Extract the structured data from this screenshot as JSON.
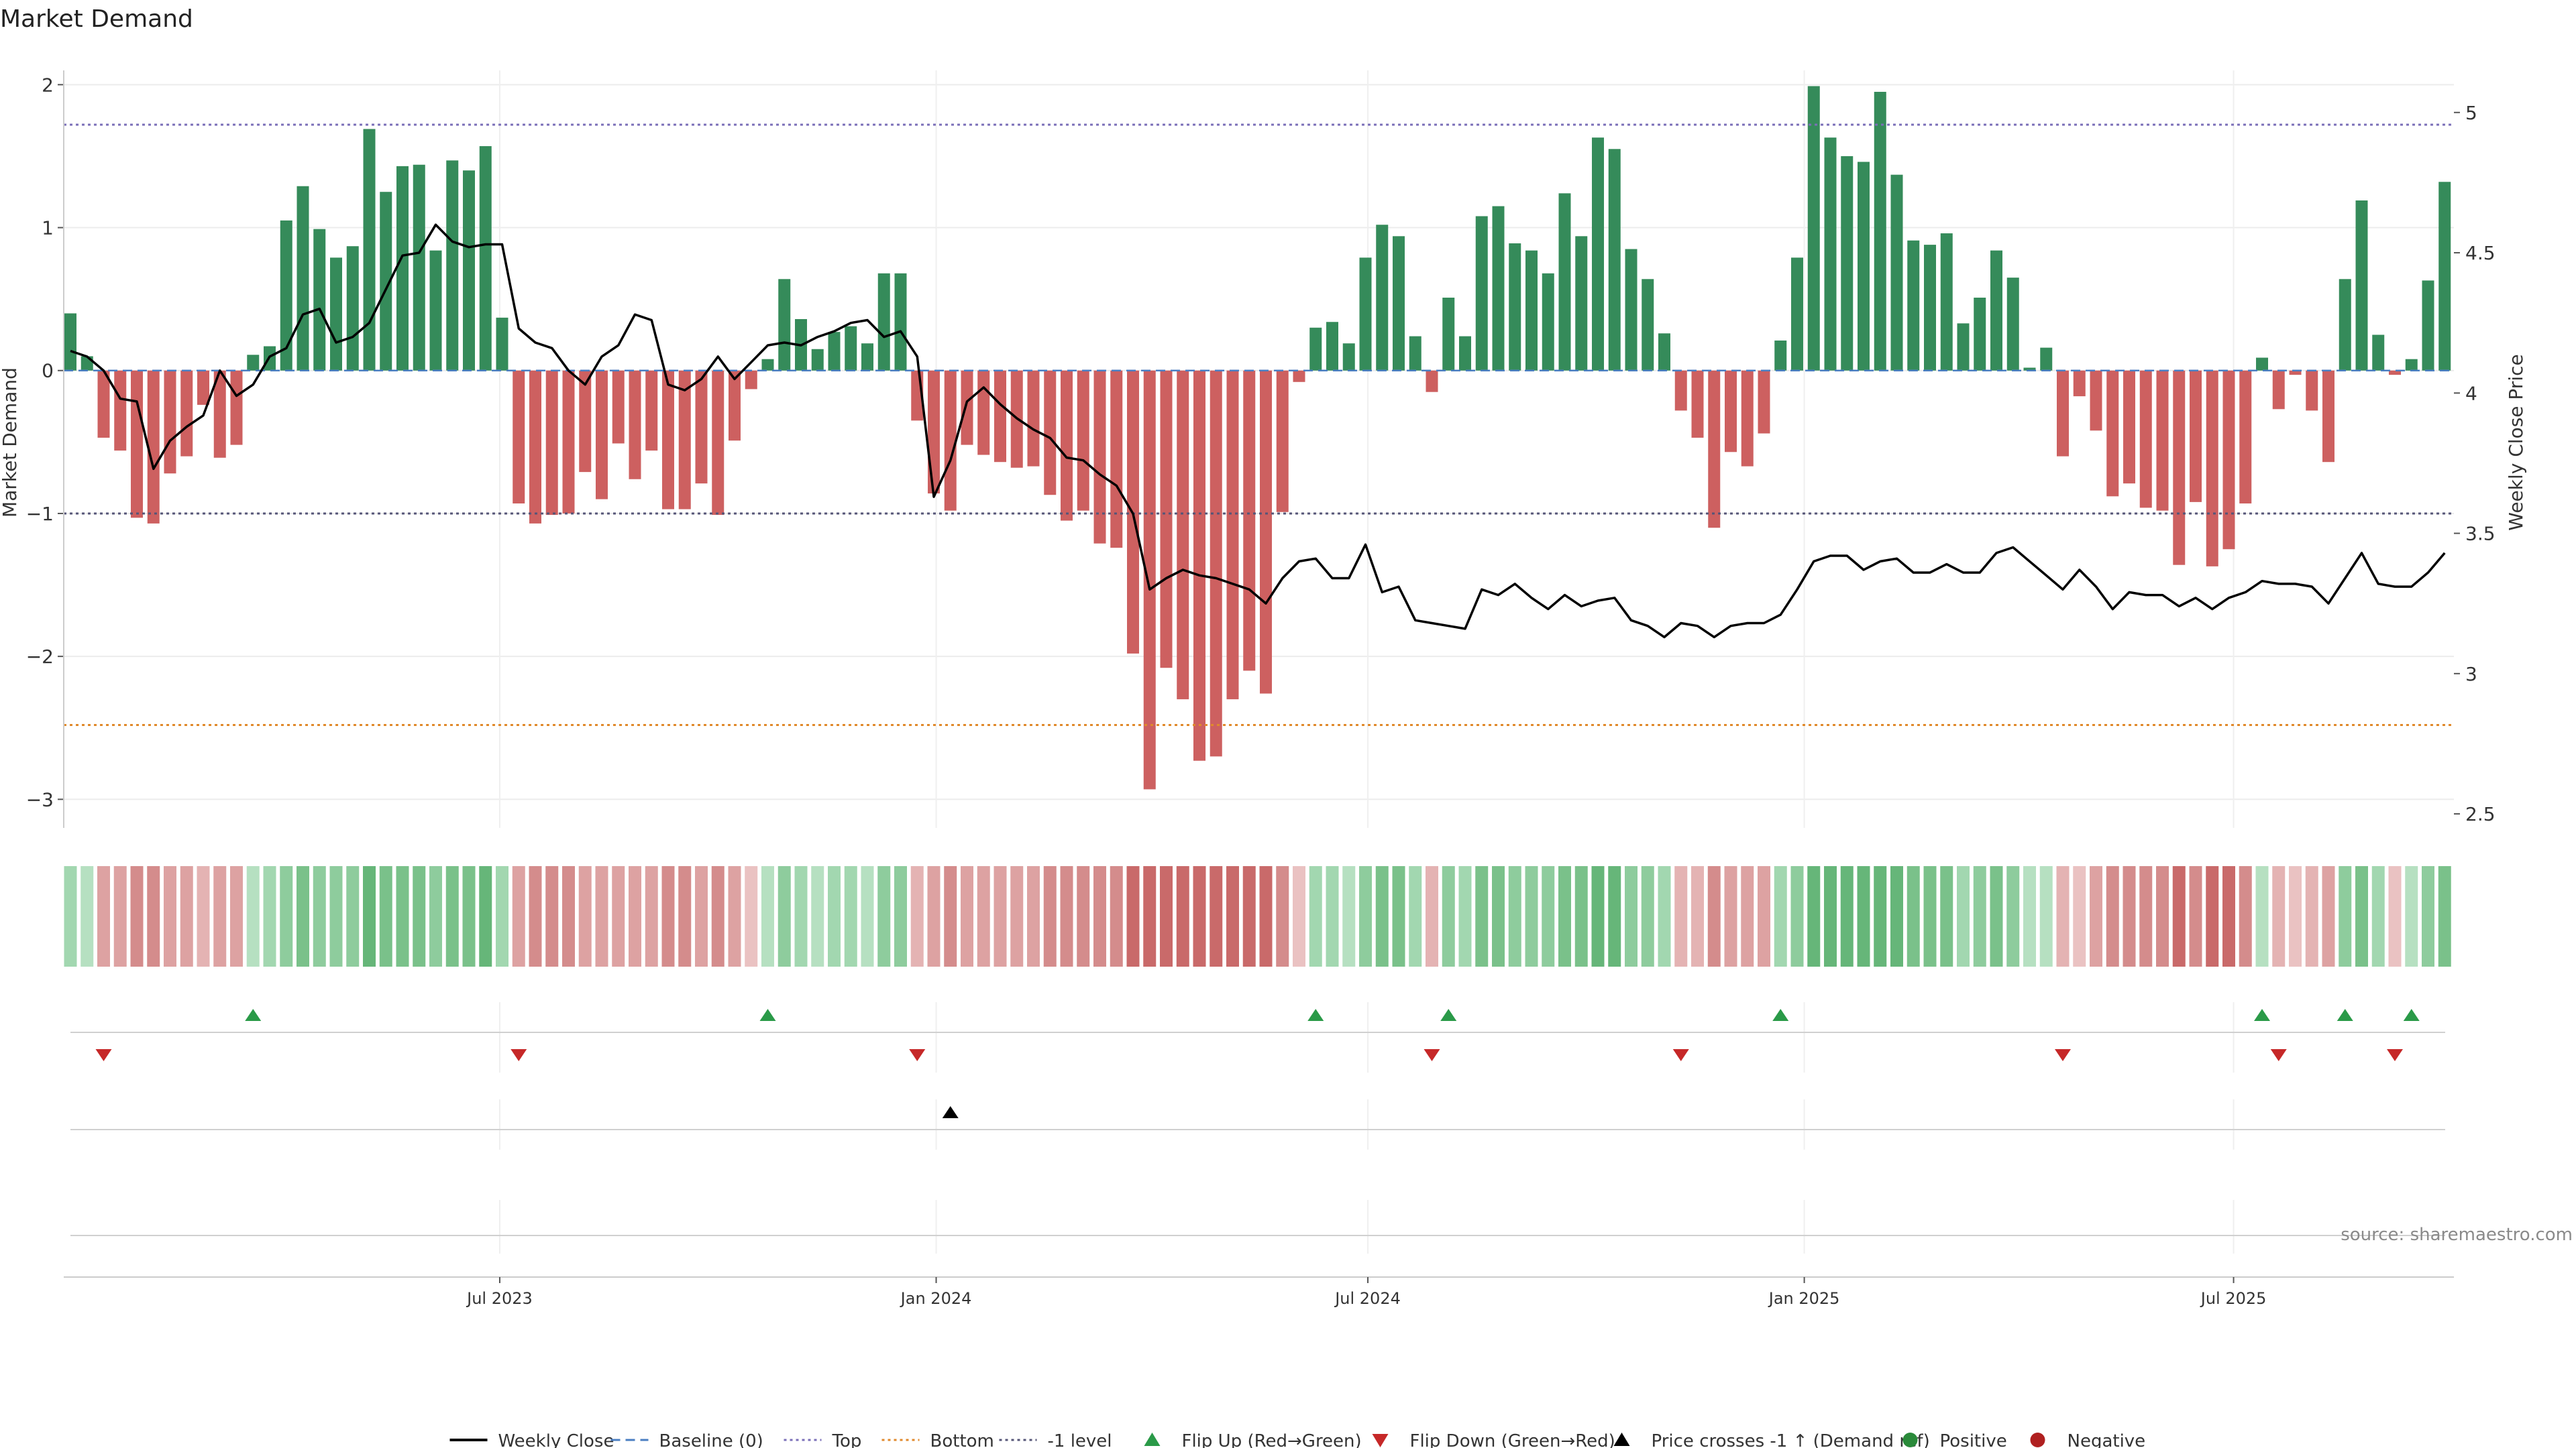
{
  "chart_data": {
    "type": "bar",
    "title": "Market Demand",
    "ylabel": "Market Demand",
    "y2label": "Weekly Close Price",
    "ylim": [
      -3.2,
      2.1
    ],
    "y2lim": [
      2.45,
      5.15
    ],
    "yticks": [
      {
        "value": 2,
        "label": "2"
      },
      {
        "value": 1,
        "label": "1"
      },
      {
        "value": 0,
        "label": "0"
      },
      {
        "value": -1,
        "label": "−1"
      },
      {
        "value": -2,
        "label": "−2"
      },
      {
        "value": -3,
        "label": "−3"
      }
    ],
    "y2ticks": [
      {
        "value": 5,
        "label": "5"
      },
      {
        "value": 4.5,
        "label": "4.5"
      },
      {
        "value": 4,
        "label": "4"
      },
      {
        "value": 3.5,
        "label": "3.5"
      },
      {
        "value": 3,
        "label": "3"
      },
      {
        "value": 2.5,
        "label": "2.5"
      }
    ],
    "x_start": "2023-01-01",
    "x_step_days": 7,
    "xticks": [
      {
        "date": "2023-07-01",
        "label": "Jul 2023"
      },
      {
        "date": "2024-01-01",
        "label": "Jan 2024"
      },
      {
        "date": "2024-07-01",
        "label": "Jul 2024"
      },
      {
        "date": "2025-01-01",
        "label": "Jan 2025"
      },
      {
        "date": "2025-07-01",
        "label": "Jul 2025"
      }
    ],
    "reference_lines": {
      "top": 1.72,
      "bottom": -2.48,
      "minus_one": -1
    },
    "demand": [
      0.4,
      0.1,
      -0.47,
      -0.56,
      -1.03,
      -1.07,
      -0.72,
      -0.6,
      -0.24,
      -0.61,
      -0.52,
      0.11,
      0.17,
      1.05,
      1.29,
      0.99,
      0.79,
      0.87,
      1.69,
      1.25,
      1.43,
      1.44,
      0.84,
      1.47,
      1.4,
      1.57,
      0.37,
      -0.93,
      -1.07,
      -1.01,
      -1.0,
      -0.71,
      -0.9,
      -0.51,
      -0.76,
      -0.56,
      -0.97,
      -0.97,
      -0.79,
      -1.01,
      -0.49,
      -0.13,
      0.08,
      0.64,
      0.36,
      0.15,
      0.27,
      0.31,
      0.19,
      0.68,
      0.68,
      -0.35,
      -0.86,
      -0.98,
      -0.52,
      -0.59,
      -0.64,
      -0.68,
      -0.67,
      -0.87,
      -1.05,
      -0.98,
      -1.21,
      -1.24,
      -1.98,
      -2.93,
      -2.08,
      -2.3,
      -2.73,
      -2.7,
      -2.3,
      -2.1,
      -2.26,
      -0.99,
      -0.08,
      0.3,
      0.34,
      0.19,
      0.79,
      1.02,
      0.94,
      0.24,
      -0.15,
      0.51,
      0.24,
      1.08,
      1.15,
      0.89,
      0.84,
      0.68,
      1.24,
      0.94,
      1.63,
      1.55,
      0.85,
      0.64,
      0.26,
      -0.28,
      -0.47,
      -1.1,
      -0.57,
      -0.67,
      -0.44,
      0.21,
      0.79,
      1.99,
      1.63,
      1.5,
      1.46,
      1.95,
      1.37,
      0.91,
      0.88,
      0.96,
      0.33,
      0.51,
      0.84,
      0.65,
      0.02,
      0.16,
      -0.6,
      -0.18,
      -0.42,
      -0.88,
      -0.79,
      -0.96,
      -0.98,
      -1.36,
      -0.92,
      -1.37,
      -1.25,
      -0.93,
      0.09,
      -0.27,
      -0.03,
      -0.28,
      -0.64,
      0.64,
      1.19,
      0.25,
      -0.03,
      0.08,
      0.63,
      1.32
    ],
    "heat": [
      3,
      2,
      4,
      4,
      5,
      5,
      4,
      4,
      3,
      4,
      4,
      2,
      3,
      4,
      5,
      4,
      4,
      4,
      6,
      5,
      5,
      5,
      4,
      5,
      5,
      6,
      3,
      4,
      5,
      5,
      5,
      4,
      4,
      4,
      4,
      4,
      5,
      5,
      4,
      5,
      4,
      2,
      2,
      4,
      3,
      2,
      3,
      3,
      2,
      4,
      4,
      3,
      4,
      5,
      4,
      4,
      4,
      4,
      4,
      5,
      5,
      5,
      5,
      5,
      6,
      6,
      6,
      6,
      6,
      6,
      6,
      6,
      6,
      5,
      2,
      3,
      3,
      2,
      4,
      5,
      5,
      3,
      3,
      4,
      3,
      5,
      5,
      4,
      4,
      4,
      5,
      5,
      6,
      6,
      4,
      4,
      3,
      3,
      3,
      5,
      4,
      4,
      4,
      3,
      4,
      6,
      6,
      6,
      6,
      6,
      6,
      5,
      5,
      5,
      3,
      4,
      5,
      4,
      2,
      2,
      3,
      2,
      4,
      5,
      5,
      5,
      5,
      6,
      5,
      6,
      6,
      5,
      2,
      3,
      2,
      3,
      4,
      4,
      5,
      3,
      2,
      2,
      4,
      5
    ],
    "price": [
      4.15,
      4.13,
      4.08,
      3.98,
      3.97,
      3.73,
      3.83,
      3.88,
      3.92,
      4.08,
      3.99,
      4.03,
      4.13,
      4.16,
      4.28,
      4.3,
      4.18,
      4.2,
      4.25,
      4.37,
      4.49,
      4.5,
      4.6,
      4.54,
      4.52,
      4.53,
      4.53,
      4.23,
      4.18,
      4.16,
      4.08,
      4.03,
      4.13,
      4.17,
      4.28,
      4.26,
      4.03,
      4.01,
      4.05,
      4.13,
      4.05,
      4.11,
      4.17,
      4.18,
      4.17,
      4.2,
      4.22,
      4.25,
      4.26,
      4.2,
      4.22,
      4.13,
      3.63,
      3.76,
      3.97,
      4.02,
      3.96,
      3.91,
      3.87,
      3.84,
      3.77,
      3.76,
      3.71,
      3.67,
      3.57,
      3.3,
      3.34,
      3.37,
      3.35,
      3.34,
      3.32,
      3.3,
      3.25,
      3.34,
      3.4,
      3.41,
      3.34,
      3.34,
      3.46,
      3.29,
      3.31,
      3.19,
      3.18,
      3.17,
      3.16,
      3.3,
      3.28,
      3.32,
      3.27,
      3.23,
      3.28,
      3.24,
      3.26,
      3.27,
      3.19,
      3.17,
      3.13,
      3.18,
      3.17,
      3.13,
      3.17,
      3.18,
      3.18,
      3.21,
      3.3,
      3.4,
      3.42,
      3.42,
      3.37,
      3.4,
      3.41,
      3.36,
      3.36,
      3.39,
      3.36,
      3.36,
      3.43,
      3.45,
      3.4,
      3.35,
      3.3,
      3.37,
      3.31,
      3.23,
      3.29,
      3.28,
      3.28,
      3.24,
      3.27,
      3.23,
      3.27,
      3.29,
      3.33,
      3.32,
      3.32,
      3.31,
      3.25,
      3.34,
      3.43,
      3.32,
      3.31,
      3.31,
      3.36,
      3.43
    ],
    "flip_up": [
      11,
      42,
      75,
      83,
      103,
      132,
      137,
      141
    ],
    "flip_down": [
      2,
      27,
      51,
      82,
      97,
      120,
      133,
      140
    ],
    "price_cross": [
      53
    ],
    "source": "source: sharemaestro.com",
    "legend": [
      {
        "label": "Weekly Close",
        "kind": "line",
        "color": "#000000"
      },
      {
        "label": "Baseline (0)",
        "kind": "dash",
        "color": "#4a7ec2"
      },
      {
        "label": "Top",
        "kind": "dot",
        "color": "#7b6fb8"
      },
      {
        "label": "Bottom",
        "kind": "dot",
        "color": "#e08a2c"
      },
      {
        "label": "-1 level",
        "kind": "dot",
        "color": "#555577"
      },
      {
        "label": "Flip Up (Red→Green)",
        "kind": "tri-up",
        "color": "#2a9a48"
      },
      {
        "label": "Flip Down (Green→Red)",
        "kind": "tri-down",
        "color": "#c62828"
      },
      {
        "label": "Price crosses -1 ↑ (Demand ref)",
        "kind": "tri-up",
        "color": "#000000"
      },
      {
        "label": "Positive",
        "kind": "circle",
        "color": "#2a8a3a"
      },
      {
        "label": "Negative",
        "kind": "circle",
        "color": "#b02020"
      }
    ],
    "colors": {
      "positive_bar": "#358b5a",
      "negative_bar": "#cd6060",
      "flip_up": "#2a9a48",
      "flip_down": "#c62828",
      "price_line": "#000000",
      "top_line": "#7b6fb8",
      "bottom_line": "#e08a2c",
      "minus_one_line": "#555577",
      "baseline": "#4a7ec2"
    }
  }
}
